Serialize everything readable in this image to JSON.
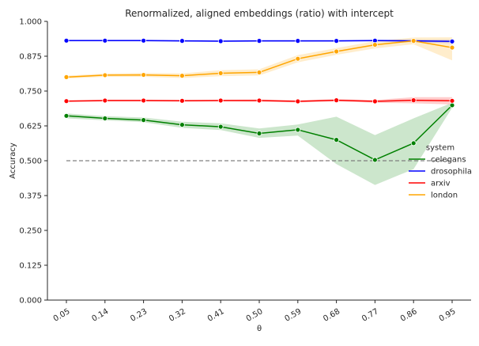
{
  "chart_data": {
    "type": "line",
    "title": "Renormalized, aligned embeddings (ratio) with intercept",
    "xlabel": "θ",
    "ylabel": "Accuracy",
    "x": [
      "0.05",
      "0.14",
      "0.23",
      "0.32",
      "0.41",
      "0.50",
      "0.59",
      "0.68",
      "0.77",
      "0.86",
      "0.95"
    ],
    "ylim": [
      0,
      1
    ],
    "yticks": [
      "0.000",
      "0.125",
      "0.250",
      "0.375",
      "0.500",
      "0.625",
      "0.750",
      "0.875",
      "1.000"
    ],
    "reference_line": {
      "y": 0.5,
      "style": "dashed",
      "color": "#808080"
    },
    "legend": {
      "title": "system",
      "placement": "right"
    },
    "grid": false,
    "series": [
      {
        "name": "celegans",
        "color": "#008000",
        "values": [
          0.661,
          0.652,
          0.646,
          0.629,
          0.622,
          0.598,
          0.611,
          0.575,
          0.503,
          0.563,
          0.699
        ],
        "lower": [
          0.652,
          0.645,
          0.638,
          0.618,
          0.61,
          0.582,
          0.59,
          0.488,
          0.413,
          0.47,
          0.69
        ],
        "upper": [
          0.67,
          0.66,
          0.655,
          0.64,
          0.634,
          0.616,
          0.63,
          0.658,
          0.592,
          0.652,
          0.708
        ]
      },
      {
        "name": "drosophila",
        "color": "#0000ff",
        "values": [
          0.931,
          0.931,
          0.931,
          0.93,
          0.929,
          0.93,
          0.93,
          0.93,
          0.931,
          0.93,
          0.928
        ],
        "lower": [
          0.928,
          0.928,
          0.928,
          0.927,
          0.926,
          0.927,
          0.927,
          0.927,
          0.928,
          0.925,
          0.922
        ],
        "upper": [
          0.934,
          0.934,
          0.934,
          0.933,
          0.932,
          0.933,
          0.933,
          0.933,
          0.934,
          0.935,
          0.934
        ]
      },
      {
        "name": "arxiv",
        "color": "#ff0000",
        "values": [
          0.714,
          0.716,
          0.716,
          0.715,
          0.716,
          0.716,
          0.713,
          0.717,
          0.713,
          0.717,
          0.715
        ],
        "lower": [
          0.711,
          0.713,
          0.713,
          0.712,
          0.713,
          0.712,
          0.709,
          0.713,
          0.708,
          0.706,
          0.702
        ],
        "upper": [
          0.717,
          0.719,
          0.719,
          0.718,
          0.719,
          0.72,
          0.717,
          0.721,
          0.718,
          0.728,
          0.728
        ]
      },
      {
        "name": "london",
        "color": "#ffa500",
        "values": [
          0.8,
          0.807,
          0.808,
          0.805,
          0.814,
          0.817,
          0.866,
          0.892,
          0.916,
          0.93,
          0.906
        ],
        "lower": [
          0.795,
          0.801,
          0.801,
          0.797,
          0.803,
          0.806,
          0.853,
          0.88,
          0.903,
          0.918,
          0.86
        ],
        "upper": [
          0.805,
          0.813,
          0.815,
          0.813,
          0.825,
          0.828,
          0.879,
          0.904,
          0.929,
          0.942,
          0.943
        ]
      }
    ]
  }
}
